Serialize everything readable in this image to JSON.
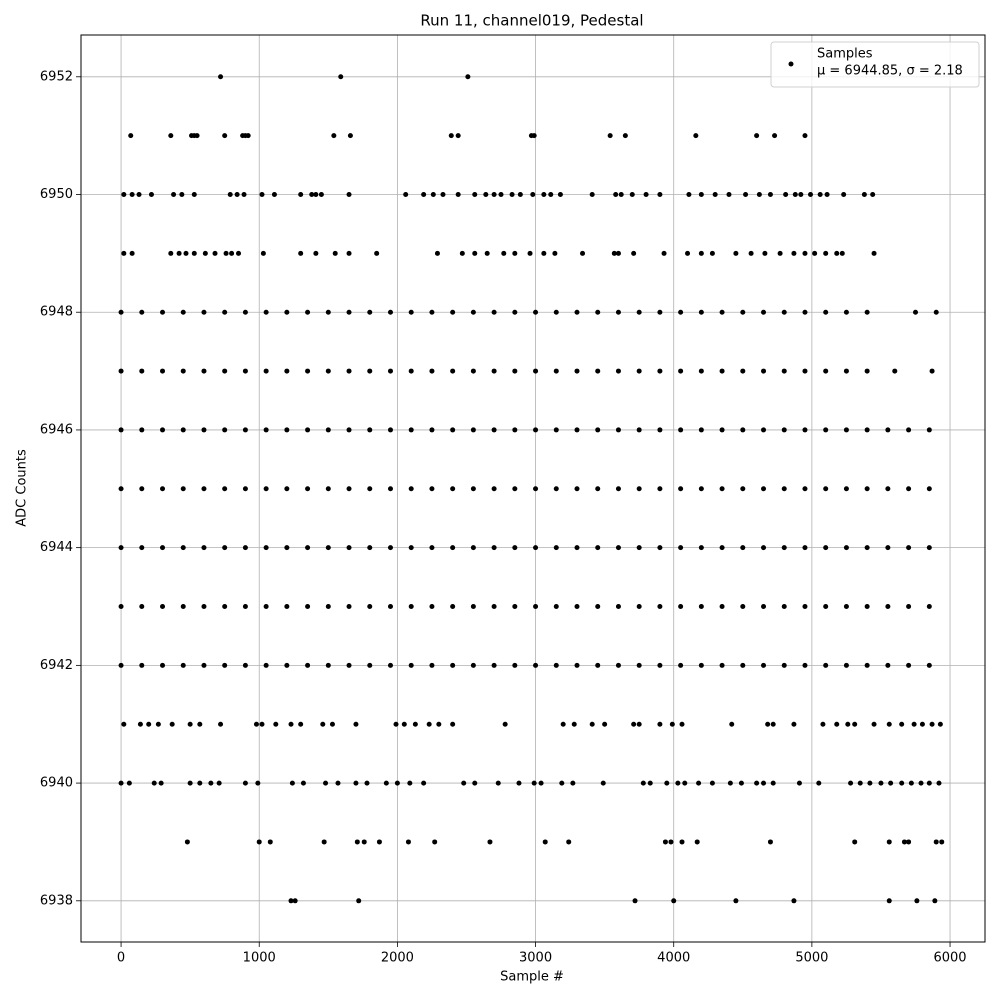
{
  "chart_data": {
    "type": "scatter",
    "title": "Run 11, channel019, Pedestal",
    "x_label": "Sample #",
    "y_label": "ADC Counts",
    "legend_text": "μ = 6944.85, σ = 2.18",
    "legend": "upper right",
    "grid": true,
    "xlim": [
      -290,
      6253
    ],
    "ylim": [
      6937.3,
      6952.71
    ],
    "xticks": [
      0,
      1000,
      2000,
      3000,
      4000,
      5000,
      6000
    ],
    "yticks": [
      6938,
      6940,
      6942,
      6944,
      6946,
      6948,
      6950,
      6952
    ],
    "series": [
      {
        "name": "Samples",
        "color": "#000000",
        "x": [
          720,
          1590,
          2510,
          70,
          360,
          510,
          530,
          550,
          750,
          880,
          900,
          920,
          1540,
          1660,
          2390,
          2440,
          2970,
          2990,
          3540,
          3650,
          4160,
          4600,
          4730,
          4950,
          20,
          80,
          130,
          220,
          380,
          440,
          530,
          790,
          840,
          890,
          1020,
          1110,
          1300,
          1380,
          1410,
          1450,
          1650,
          2060,
          2190,
          2260,
          2330,
          2440,
          2560,
          2640,
          2700,
          2750,
          2830,
          2890,
          2980,
          3060,
          3110,
          3180,
          3410,
          3580,
          3620,
          3700,
          3800,
          3900,
          4110,
          4200,
          4300,
          4400,
          4520,
          4620,
          4700,
          4810,
          4880,
          4920,
          4990,
          5060,
          5110,
          5230,
          5380,
          5440,
          20,
          80,
          360,
          420,
          470,
          530,
          610,
          680,
          760,
          800,
          850,
          1030,
          1300,
          1410,
          1550,
          1650,
          1850,
          2290,
          2470,
          2560,
          2650,
          2770,
          2850,
          2960,
          3060,
          3140,
          3340,
          3570,
          3600,
          3710,
          3930,
          4100,
          4200,
          4280,
          4450,
          4560,
          4660,
          4770,
          4870,
          4950,
          5020,
          5100,
          5180,
          5220,
          5450,
          0,
          150,
          300,
          450,
          600,
          750,
          900,
          1050,
          1200,
          1350,
          1500,
          1650,
          1800,
          1950,
          2100,
          2250,
          2400,
          2550,
          2700,
          2850,
          3000,
          3150,
          3300,
          3450,
          3600,
          3750,
          3900,
          4050,
          4200,
          4350,
          4500,
          4650,
          4800,
          4950,
          5100,
          5250,
          5400,
          5750,
          5900,
          0,
          150,
          300,
          450,
          600,
          750,
          900,
          1050,
          1200,
          1350,
          1500,
          1650,
          1800,
          1950,
          2100,
          2250,
          2400,
          2550,
          2700,
          2850,
          3000,
          3150,
          3300,
          3450,
          3600,
          3750,
          3900,
          4050,
          4200,
          4350,
          4500,
          4650,
          4800,
          4950,
          5100,
          5250,
          5400,
          5600,
          5870,
          0,
          150,
          300,
          450,
          600,
          750,
          900,
          1050,
          1200,
          1350,
          1500,
          1650,
          1800,
          1950,
          2100,
          2250,
          2400,
          2550,
          2700,
          2850,
          3000,
          3150,
          3300,
          3450,
          3600,
          3750,
          3900,
          4050,
          4200,
          4350,
          4500,
          4650,
          4800,
          4950,
          5100,
          5250,
          5400,
          5550,
          5700,
          5850,
          0,
          150,
          300,
          450,
          600,
          750,
          900,
          1050,
          1200,
          1350,
          1500,
          1650,
          1800,
          1950,
          2100,
          2250,
          2400,
          2550,
          2700,
          2850,
          3000,
          3150,
          3300,
          3450,
          3600,
          3750,
          3900,
          4050,
          4200,
          4350,
          4500,
          4650,
          4800,
          4950,
          5100,
          5250,
          5400,
          5550,
          5700,
          5850,
          0,
          150,
          300,
          450,
          600,
          750,
          900,
          1050,
          1200,
          1350,
          1500,
          1650,
          1800,
          1950,
          2100,
          2250,
          2400,
          2550,
          2700,
          2850,
          3000,
          3150,
          3300,
          3450,
          3600,
          3750,
          3900,
          4050,
          4200,
          4350,
          4500,
          4650,
          4800,
          4950,
          5100,
          5250,
          5400,
          5550,
          5700,
          5850,
          0,
          150,
          300,
          450,
          600,
          750,
          900,
          1050,
          1200,
          1350,
          1500,
          1650,
          1800,
          1950,
          2100,
          2250,
          2400,
          2550,
          2700,
          2850,
          3000,
          3150,
          3300,
          3450,
          3600,
          3750,
          3900,
          4050,
          4200,
          4350,
          4500,
          4650,
          4800,
          4950,
          5100,
          5250,
          5400,
          5550,
          5700,
          5850,
          0,
          150,
          300,
          450,
          600,
          750,
          900,
          1050,
          1200,
          1350,
          1500,
          1650,
          1800,
          1950,
          2100,
          2250,
          2400,
          2550,
          2700,
          2850,
          3000,
          3150,
          3300,
          3450,
          3600,
          3750,
          3900,
          4050,
          4200,
          4350,
          4500,
          4650,
          4800,
          4950,
          5100,
          5250,
          5400,
          5550,
          5700,
          5850,
          20,
          140,
          200,
          270,
          370,
          500,
          570,
          720,
          980,
          1020,
          1120,
          1230,
          1300,
          1460,
          1530,
          1700,
          1990,
          2050,
          2130,
          2230,
          2300,
          2400,
          2780,
          3200,
          3280,
          3410,
          3500,
          3710,
          3750,
          3900,
          3990,
          4060,
          4420,
          4680,
          4720,
          4870,
          5080,
          5180,
          5260,
          5310,
          5450,
          5560,
          5650,
          5740,
          5800,
          5870,
          5930,
          0,
          60,
          240,
          290,
          500,
          570,
          650,
          710,
          900,
          990,
          1240,
          1320,
          1480,
          1570,
          1700,
          1780,
          1920,
          2000,
          2090,
          2190,
          2480,
          2560,
          2730,
          2880,
          2990,
          3040,
          3190,
          3270,
          3490,
          3780,
          3830,
          3950,
          4030,
          4080,
          4180,
          4280,
          4410,
          4490,
          4600,
          4650,
          4720,
          4910,
          5050,
          5280,
          5350,
          5420,
          5500,
          5570,
          5650,
          5720,
          5790,
          5850,
          5920,
          480,
          1000,
          1080,
          1470,
          1710,
          1760,
          1870,
          2080,
          2270,
          2670,
          3070,
          3240,
          3940,
          3980,
          4060,
          4170,
          4700,
          5310,
          5560,
          5670,
          5700,
          5900,
          5940,
          1230,
          1260,
          1720,
          3720,
          4000,
          4450,
          4870,
          5560,
          5760,
          5890
        ],
        "values": [
          6952,
          6952,
          6952,
          6951,
          6951,
          6951,
          6951,
          6951,
          6951,
          6951,
          6951,
          6951,
          6951,
          6951,
          6951,
          6951,
          6951,
          6951,
          6951,
          6951,
          6951,
          6951,
          6951,
          6951,
          6950,
          6950,
          6950,
          6950,
          6950,
          6950,
          6950,
          6950,
          6950,
          6950,
          6950,
          6950,
          6950,
          6950,
          6950,
          6950,
          6950,
          6950,
          6950,
          6950,
          6950,
          6950,
          6950,
          6950,
          6950,
          6950,
          6950,
          6950,
          6950,
          6950,
          6950,
          6950,
          6950,
          6950,
          6950,
          6950,
          6950,
          6950,
          6950,
          6950,
          6950,
          6950,
          6950,
          6950,
          6950,
          6950,
          6950,
          6950,
          6950,
          6950,
          6950,
          6950,
          6950,
          6950,
          6949,
          6949,
          6949,
          6949,
          6949,
          6949,
          6949,
          6949,
          6949,
          6949,
          6949,
          6949,
          6949,
          6949,
          6949,
          6949,
          6949,
          6949,
          6949,
          6949,
          6949,
          6949,
          6949,
          6949,
          6949,
          6949,
          6949,
          6949,
          6949,
          6949,
          6949,
          6949,
          6949,
          6949,
          6949,
          6949,
          6949,
          6949,
          6949,
          6949,
          6949,
          6949,
          6949,
          6949,
          6949,
          6948,
          6948,
          6948,
          6948,
          6948,
          6948,
          6948,
          6948,
          6948,
          6948,
          6948,
          6948,
          6948,
          6948,
          6948,
          6948,
          6948,
          6948,
          6948,
          6948,
          6948,
          6948,
          6948,
          6948,
          6948,
          6948,
          6948,
          6948,
          6948,
          6948,
          6948,
          6948,
          6948,
          6948,
          6948,
          6948,
          6948,
          6948,
          6948,
          6947,
          6947,
          6947,
          6947,
          6947,
          6947,
          6947,
          6947,
          6947,
          6947,
          6947,
          6947,
          6947,
          6947,
          6947,
          6947,
          6947,
          6947,
          6947,
          6947,
          6947,
          6947,
          6947,
          6947,
          6947,
          6947,
          6947,
          6947,
          6947,
          6947,
          6947,
          6947,
          6947,
          6947,
          6947,
          6947,
          6947,
          6947,
          6947,
          6946,
          6946,
          6946,
          6946,
          6946,
          6946,
          6946,
          6946,
          6946,
          6946,
          6946,
          6946,
          6946,
          6946,
          6946,
          6946,
          6946,
          6946,
          6946,
          6946,
          6946,
          6946,
          6946,
          6946,
          6946,
          6946,
          6946,
          6946,
          6946,
          6946,
          6946,
          6946,
          6946,
          6946,
          6946,
          6946,
          6946,
          6946,
          6946,
          6946,
          6945,
          6945,
          6945,
          6945,
          6945,
          6945,
          6945,
          6945,
          6945,
          6945,
          6945,
          6945,
          6945,
          6945,
          6945,
          6945,
          6945,
          6945,
          6945,
          6945,
          6945,
          6945,
          6945,
          6945,
          6945,
          6945,
          6945,
          6945,
          6945,
          6945,
          6945,
          6945,
          6945,
          6945,
          6945,
          6945,
          6945,
          6945,
          6945,
          6945,
          6944,
          6944,
          6944,
          6944,
          6944,
          6944,
          6944,
          6944,
          6944,
          6944,
          6944,
          6944,
          6944,
          6944,
          6944,
          6944,
          6944,
          6944,
          6944,
          6944,
          6944,
          6944,
          6944,
          6944,
          6944,
          6944,
          6944,
          6944,
          6944,
          6944,
          6944,
          6944,
          6944,
          6944,
          6944,
          6944,
          6944,
          6944,
          6944,
          6944,
          6943,
          6943,
          6943,
          6943,
          6943,
          6943,
          6943,
          6943,
          6943,
          6943,
          6943,
          6943,
          6943,
          6943,
          6943,
          6943,
          6943,
          6943,
          6943,
          6943,
          6943,
          6943,
          6943,
          6943,
          6943,
          6943,
          6943,
          6943,
          6943,
          6943,
          6943,
          6943,
          6943,
          6943,
          6943,
          6943,
          6943,
          6943,
          6943,
          6943,
          6942,
          6942,
          6942,
          6942,
          6942,
          6942,
          6942,
          6942,
          6942,
          6942,
          6942,
          6942,
          6942,
          6942,
          6942,
          6942,
          6942,
          6942,
          6942,
          6942,
          6942,
          6942,
          6942,
          6942,
          6942,
          6942,
          6942,
          6942,
          6942,
          6942,
          6942,
          6942,
          6942,
          6942,
          6942,
          6942,
          6942,
          6942,
          6942,
          6942,
          6941,
          6941,
          6941,
          6941,
          6941,
          6941,
          6941,
          6941,
          6941,
          6941,
          6941,
          6941,
          6941,
          6941,
          6941,
          6941,
          6941,
          6941,
          6941,
          6941,
          6941,
          6941,
          6941,
          6941,
          6941,
          6941,
          6941,
          6941,
          6941,
          6941,
          6941,
          6941,
          6941,
          6941,
          6941,
          6941,
          6941,
          6941,
          6941,
          6941,
          6941,
          6941,
          6941,
          6941,
          6941,
          6941,
          6941,
          6940,
          6940,
          6940,
          6940,
          6940,
          6940,
          6940,
          6940,
          6940,
          6940,
          6940,
          6940,
          6940,
          6940,
          6940,
          6940,
          6940,
          6940,
          6940,
          6940,
          6940,
          6940,
          6940,
          6940,
          6940,
          6940,
          6940,
          6940,
          6940,
          6940,
          6940,
          6940,
          6940,
          6940,
          6940,
          6940,
          6940,
          6940,
          6940,
          6940,
          6940,
          6940,
          6940,
          6940,
          6940,
          6940,
          6940,
          6940,
          6940,
          6940,
          6940,
          6940,
          6940,
          6939,
          6939,
          6939,
          6939,
          6939,
          6939,
          6939,
          6939,
          6939,
          6939,
          6939,
          6939,
          6939,
          6939,
          6939,
          6939,
          6939,
          6939,
          6939,
          6939,
          6939,
          6939,
          6939,
          6938,
          6938,
          6938,
          6938,
          6938,
          6938,
          6938,
          6938,
          6938,
          6938
        ]
      }
    ]
  }
}
